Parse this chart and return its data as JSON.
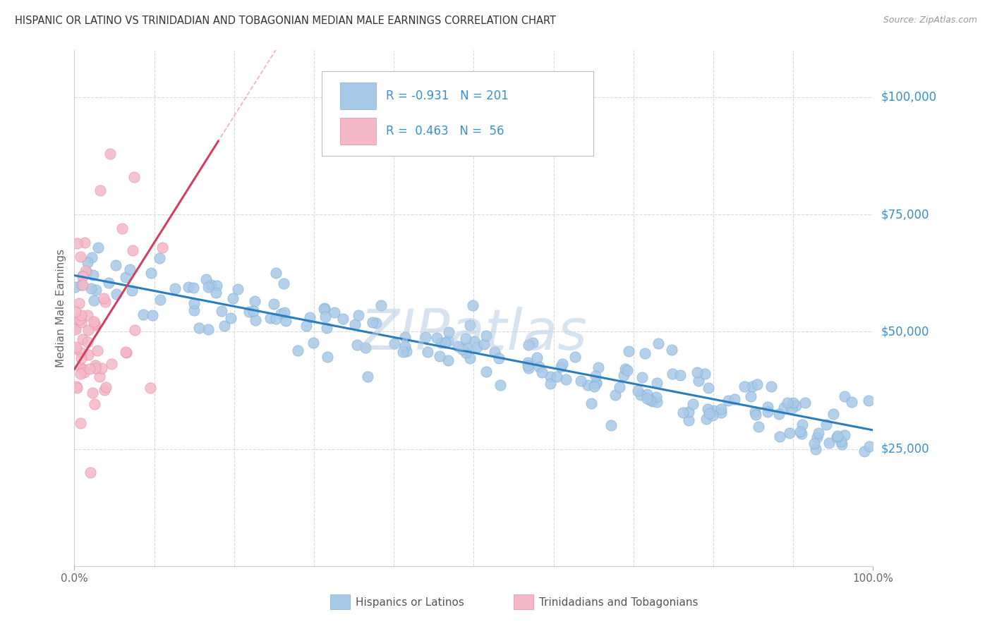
{
  "title": "HISPANIC OR LATINO VS TRINIDADIAN AND TOBAGONIAN MEDIAN MALE EARNINGS CORRELATION CHART",
  "source": "Source: ZipAtlas.com",
  "ylabel": "Median Male Earnings",
  "xlim": [
    0,
    1.0
  ],
  "ylim": [
    0,
    110000
  ],
  "ytick_values": [
    25000,
    50000,
    75000,
    100000
  ],
  "ytick_labels": [
    "$25,000",
    "$50,000",
    "$75,000",
    "$100,000"
  ],
  "blue_R": "-0.931",
  "blue_N": "201",
  "pink_R": "0.463",
  "pink_N": "56",
  "blue_color": "#a8c8e8",
  "blue_edge_color": "#7aaed0",
  "pink_color": "#f4b8c8",
  "pink_edge_color": "#e888a8",
  "trend_blue_color": "#2a7dbd",
  "trend_pink_solid_color": "#d04060",
  "trend_pink_dashed_color": "#e890a8",
  "background_color": "#ffffff",
  "grid_color": "#d8d8d8",
  "legend_label_blue": "Hispanics or Latinos",
  "legend_label_pink": "Trinidadians and Tobagonians",
  "watermark": "ZIPatlas",
  "title_color": "#333333",
  "axis_label_color": "#666666",
  "right_label_color": "#3a8fcd",
  "source_color": "#999999",
  "legend_R_N_color": "#3a8fcd",
  "legend_text_color": "#222222"
}
